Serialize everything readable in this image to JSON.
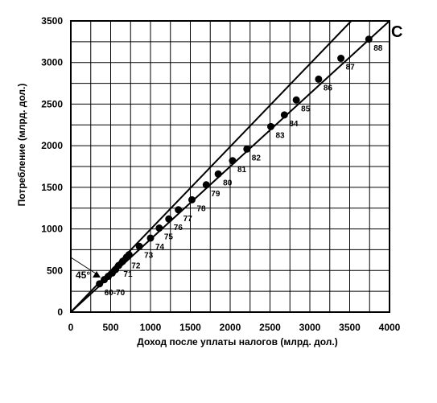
{
  "chart_data": {
    "type": "scatter",
    "xlabel": "Доход после уплаты налогов (млрд. дол.)",
    "ylabel": "Потребление (млрд. дол.)",
    "xlim": [
      0,
      4000
    ],
    "ylim": [
      0,
      3500
    ],
    "xticks": [
      0,
      500,
      1000,
      1500,
      2000,
      2500,
      3000,
      3500,
      4000
    ],
    "yticks": [
      0,
      500,
      1000,
      1500,
      2000,
      2500,
      3000,
      3500
    ],
    "grid": true,
    "points": [
      {
        "x": 360,
        "y": 340,
        "label": "60-70"
      },
      {
        "x": 420,
        "y": 390,
        "label": ""
      },
      {
        "x": 470,
        "y": 430,
        "label": ""
      },
      {
        "x": 520,
        "y": 470,
        "label": ""
      },
      {
        "x": 560,
        "y": 510,
        "label": ""
      },
      {
        "x": 600,
        "y": 560,
        "label": "71"
      },
      {
        "x": 650,
        "y": 610,
        "label": ""
      },
      {
        "x": 700,
        "y": 660,
        "label": "72"
      },
      {
        "x": 730,
        "y": 690,
        "label": ""
      },
      {
        "x": 860,
        "y": 790,
        "label": "73"
      },
      {
        "x": 1000,
        "y": 890,
        "label": "74"
      },
      {
        "x": 1110,
        "y": 1010,
        "label": "75"
      },
      {
        "x": 1230,
        "y": 1120,
        "label": "76"
      },
      {
        "x": 1350,
        "y": 1230,
        "label": "77"
      },
      {
        "x": 1520,
        "y": 1350,
        "label": "78"
      },
      {
        "x": 1700,
        "y": 1530,
        "label": "79"
      },
      {
        "x": 1850,
        "y": 1660,
        "label": "80"
      },
      {
        "x": 2030,
        "y": 1820,
        "label": "81"
      },
      {
        "x": 2210,
        "y": 1960,
        "label": "82"
      },
      {
        "x": 2510,
        "y": 2230,
        "label": "83"
      },
      {
        "x": 2680,
        "y": 2370,
        "label": "84"
      },
      {
        "x": 2830,
        "y": 2550,
        "label": "85"
      },
      {
        "x": 3110,
        "y": 2800,
        "label": "86"
      },
      {
        "x": 3390,
        "y": 3050,
        "label": "87"
      },
      {
        "x": 3740,
        "y": 3280,
        "label": "88"
      }
    ],
    "lines": [
      {
        "label": "45°",
        "from": [
          0,
          0
        ],
        "to": [
          3520,
          3500
        ]
      },
      {
        "label": "C",
        "from": [
          0,
          0
        ],
        "to": [
          4000,
          3500
        ]
      }
    ],
    "annotations": [
      "45°",
      "C"
    ]
  }
}
